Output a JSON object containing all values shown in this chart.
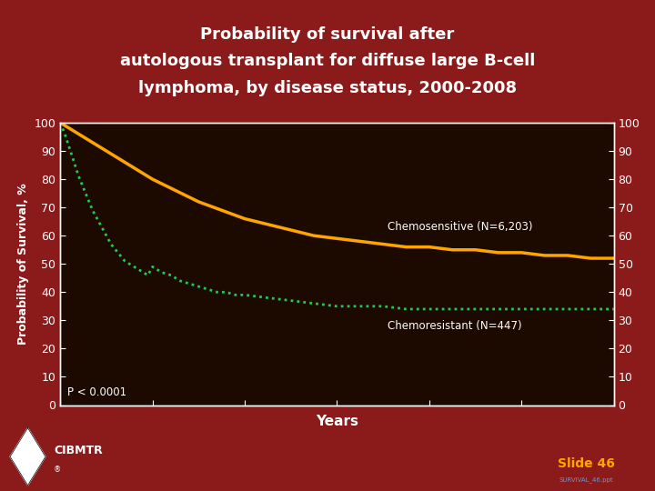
{
  "title_line1": "Probability of survival after",
  "title_line2": "autologous transplant for diffuse large B-cell",
  "title_line3": "lymphoma, by disease status, 2000-2008",
  "background_outer": "#8B1A1A",
  "background_plot": "#1C0A00",
  "title_color": "#FFFFFF",
  "axis_color": "#FFFFFF",
  "tick_color": "#FFFFFF",
  "xlabel": "Years",
  "ylabel": "Probability of Survival, %",
  "xlim": [
    0,
    6
  ],
  "ylim": [
    0,
    100
  ],
  "xticks": [
    0,
    1,
    2,
    3,
    4,
    5,
    6
  ],
  "yticks": [
    0,
    10,
    20,
    30,
    40,
    50,
    60,
    70,
    80,
    90,
    100
  ],
  "chemosensitive_color": "#FFA500",
  "chemoresistant_color": "#22CC44",
  "chemosensitive_label": "Chemosensitive (N=6,203)",
  "chemoresistant_label": "Chemoresistant (N=447)",
  "pvalue_text": "P < 0.0001",
  "slide_text": "Slide 46",
  "slide_color": "#FFA500",
  "chemosensitive_x": [
    0,
    0.05,
    0.1,
    0.2,
    0.3,
    0.4,
    0.5,
    0.6,
    0.7,
    0.8,
    0.9,
    1.0,
    1.25,
    1.5,
    1.75,
    2.0,
    2.25,
    2.5,
    2.75,
    3.0,
    3.25,
    3.5,
    3.75,
    4.0,
    4.25,
    4.5,
    4.75,
    5.0,
    5.25,
    5.5,
    5.75,
    6.0
  ],
  "chemosensitive_y": [
    100,
    99,
    98,
    96,
    94,
    92,
    90,
    88,
    86,
    84,
    82,
    80,
    76,
    72,
    69,
    66,
    64,
    62,
    60,
    59,
    58,
    57,
    56,
    56,
    55,
    55,
    54,
    54,
    53,
    53,
    52,
    52
  ],
  "chemoresistant_x": [
    0,
    0.05,
    0.1,
    0.15,
    0.2,
    0.25,
    0.3,
    0.35,
    0.4,
    0.45,
    0.5,
    0.55,
    0.6,
    0.65,
    0.7,
    0.75,
    0.8,
    0.85,
    0.9,
    0.95,
    1.0,
    1.1,
    1.2,
    1.3,
    1.4,
    1.5,
    1.6,
    1.7,
    1.8,
    1.9,
    2.0,
    2.25,
    2.5,
    2.75,
    3.0,
    3.25,
    3.5,
    3.75,
    4.0,
    4.25,
    4.5,
    4.75,
    5.0,
    5.25,
    5.5,
    5.75,
    6.0
  ],
  "chemoresistant_y": [
    100,
    96,
    91,
    86,
    81,
    77,
    73,
    69,
    66,
    63,
    60,
    57,
    55,
    53,
    51,
    50,
    49,
    48,
    47,
    46,
    49,
    47,
    46,
    44,
    43,
    42,
    41,
    40,
    40,
    39,
    39,
    38,
    37,
    36,
    35,
    35,
    35,
    34,
    34,
    34,
    34,
    34,
    34,
    34,
    34,
    34,
    34
  ]
}
